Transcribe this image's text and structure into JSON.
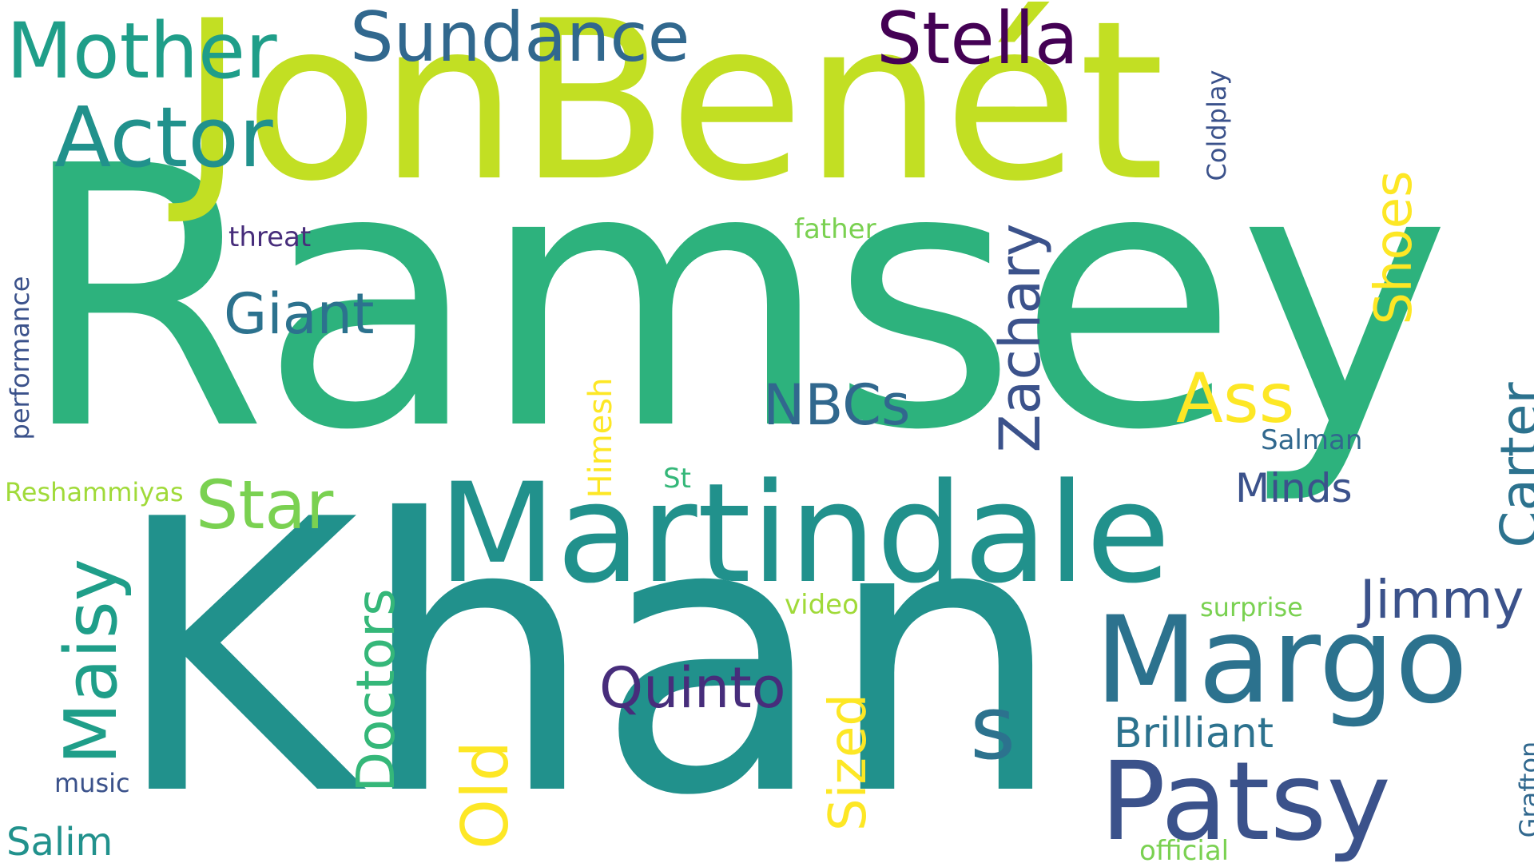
{
  "words": [
    {
      "id": "ramsey",
      "text": "Ramsey",
      "color": "#2db27d"
    },
    {
      "id": "khan",
      "text": "Khan",
      "color": "#21918c"
    },
    {
      "id": "jonbenet",
      "text": "JonBenét",
      "color": "#c2df23"
    },
    {
      "id": "martindale",
      "text": "Martindale",
      "color": "#21918c"
    },
    {
      "id": "margo",
      "text": "Margo",
      "color": "#2c728e"
    },
    {
      "id": "patsy",
      "text": "Patsy",
      "color": "#3b528b"
    },
    {
      "id": "mother",
      "text": "Mother",
      "color": "#1f9e89"
    },
    {
      "id": "sundance",
      "text": "Sundance",
      "color": "#31688e"
    },
    {
      "id": "stella",
      "text": "Stella",
      "color": "#440154"
    },
    {
      "id": "actor",
      "text": "Actor",
      "color": "#21918c"
    },
    {
      "id": "maisy",
      "text": "Maisy",
      "color": "#1f9e89"
    },
    {
      "id": "star",
      "text": "Star",
      "color": "#7ad151"
    },
    {
      "id": "giant",
      "text": "Giant",
      "color": "#2c728e"
    },
    {
      "id": "nbcs",
      "text": "NBCs",
      "color": "#31688e"
    },
    {
      "id": "zachary",
      "text": "Zachary",
      "color": "#3b528b"
    },
    {
      "id": "ass",
      "text": "Ass",
      "color": "#fde725"
    },
    {
      "id": "shoes",
      "text": "Shoes",
      "color": "#fde725"
    },
    {
      "id": "carter",
      "text": "Carter",
      "color": "#2c728e"
    },
    {
      "id": "minds",
      "text": "Minds",
      "color": "#3b528b"
    },
    {
      "id": "jimmy",
      "text": "Jimmy",
      "color": "#3b528b"
    },
    {
      "id": "s",
      "text": "s",
      "color": "#2c728e"
    },
    {
      "id": "brilliant",
      "text": "Brilliant",
      "color": "#2c728e"
    },
    {
      "id": "doctors",
      "text": "Doctors",
      "color": "#35b779"
    },
    {
      "id": "quinto",
      "text": "Quinto",
      "color": "#472d7b"
    },
    {
      "id": "sized",
      "text": "Sized",
      "color": "#fde725"
    },
    {
      "id": "old",
      "text": "Old",
      "color": "#fde725"
    },
    {
      "id": "himesh",
      "text": "Himesh",
      "color": "#fde725"
    },
    {
      "id": "salim",
      "text": "Salim",
      "color": "#21918c"
    },
    {
      "id": "music",
      "text": "music",
      "color": "#3b528b"
    },
    {
      "id": "performance",
      "text": "performance",
      "color": "#3b528b"
    },
    {
      "id": "reshammiyas",
      "text": "Reshammiyas",
      "color": "#a0da39"
    },
    {
      "id": "threat",
      "text": "threat",
      "color": "#472d7b"
    },
    {
      "id": "father",
      "text": "father",
      "color": "#7ad151"
    },
    {
      "id": "coldplay",
      "text": "Coldplay",
      "color": "#3b528b"
    },
    {
      "id": "salman",
      "text": "Salman",
      "color": "#31688e"
    },
    {
      "id": "st",
      "text": "St",
      "color": "#35b779"
    },
    {
      "id": "video",
      "text": "video",
      "color": "#a0da39"
    },
    {
      "id": "surprise",
      "text": "surprise",
      "color": "#7ad151"
    },
    {
      "id": "official",
      "text": "official",
      "color": "#7ad151"
    },
    {
      "id": "grafton",
      "text": "Grafton",
      "color": "#31688e"
    }
  ]
}
